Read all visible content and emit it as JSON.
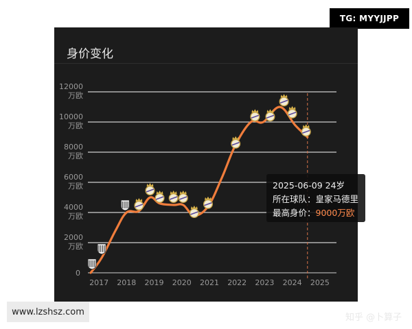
{
  "overlay": {
    "tg_label": "TG: MYYJJPP",
    "watermark": "www.lzshsz.com"
  },
  "panel": {
    "title": "身价变化",
    "credit": "知乎 @卜算子"
  },
  "tooltip": {
    "date_age": "2025-06-09 24岁",
    "club_label": "所在球队：",
    "club": "皇家马德里",
    "value_label": "最高身价：",
    "value": "9000万欧"
  },
  "chart_data": {
    "type": "line",
    "title": "身价变化",
    "y_unit": "万欧",
    "ylim": [
      0,
      12000
    ],
    "y_ticks": [
      {
        "value": 0,
        "label": "0",
        "unit": ""
      },
      {
        "value": 2000,
        "label": "2000",
        "unit": "万欧"
      },
      {
        "value": 4000,
        "label": "4000",
        "unit": "万欧"
      },
      {
        "value": 6000,
        "label": "6000",
        "unit": "万欧"
      },
      {
        "value": 8000,
        "label": "8000",
        "unit": "万欧"
      },
      {
        "value": 10000,
        "label": "10000",
        "unit": "万欧"
      },
      {
        "value": 12000,
        "label": "12000",
        "unit": "万欧"
      }
    ],
    "x_ticks": [
      "2017",
      "2018",
      "2019",
      "2020",
      "2021",
      "2022",
      "2023",
      "2024",
      "2025"
    ],
    "xlim": [
      2016.6,
      2025.6
    ],
    "grid": true,
    "line_color": "#f07d3c",
    "club_colors": {
      "santos": "#ffffff",
      "real_madrid": "#c9a64a"
    },
    "series": [
      {
        "values": [
          {
            "x": 2016.7,
            "y": 0
          },
          {
            "x": 2017.1,
            "y": 1000
          },
          {
            "x": 2017.6,
            "y": 2800
          },
          {
            "x": 2018.0,
            "y": 4000
          },
          {
            "x": 2018.45,
            "y": 4100
          },
          {
            "x": 2018.85,
            "y": 5000
          },
          {
            "x": 2019.2,
            "y": 4600
          },
          {
            "x": 2019.7,
            "y": 4500
          },
          {
            "x": 2020.05,
            "y": 4500
          },
          {
            "x": 2020.45,
            "y": 3800
          },
          {
            "x": 2020.95,
            "y": 4400
          },
          {
            "x": 2021.45,
            "y": 6300
          },
          {
            "x": 2021.95,
            "y": 8500
          },
          {
            "x": 2022.5,
            "y": 10000
          },
          {
            "x": 2022.95,
            "y": 10000
          },
          {
            "x": 2023.55,
            "y": 11000
          },
          {
            "x": 2024.1,
            "y": 9800
          },
          {
            "x": 2024.55,
            "y": 9000
          }
        ]
      }
    ],
    "markers": [
      {
        "x": 2016.75,
        "y": 600,
        "club": "santos"
      },
      {
        "x": 2017.1,
        "y": 1600,
        "club": "santos"
      },
      {
        "x": 2017.95,
        "y": 4500,
        "club": "santos"
      },
      {
        "x": 2018.45,
        "y": 4500,
        "club": "real_madrid"
      },
      {
        "x": 2018.85,
        "y": 5500,
        "club": "real_madrid"
      },
      {
        "x": 2019.2,
        "y": 5000,
        "club": "real_madrid"
      },
      {
        "x": 2019.7,
        "y": 5000,
        "club": "real_madrid"
      },
      {
        "x": 2020.05,
        "y": 5000,
        "club": "real_madrid"
      },
      {
        "x": 2020.45,
        "y": 4000,
        "club": "real_madrid"
      },
      {
        "x": 2020.95,
        "y": 4600,
        "club": "real_madrid"
      },
      {
        "x": 2021.95,
        "y": 8600,
        "club": "real_madrid"
      },
      {
        "x": 2022.65,
        "y": 10400,
        "club": "real_madrid"
      },
      {
        "x": 2023.2,
        "y": 10400,
        "club": "real_madrid"
      },
      {
        "x": 2023.7,
        "y": 11400,
        "club": "real_madrid"
      },
      {
        "x": 2024.0,
        "y": 10600,
        "club": "real_madrid"
      },
      {
        "x": 2024.5,
        "y": 9400,
        "club": "real_madrid"
      }
    ],
    "highlight_x": 2024.55
  }
}
